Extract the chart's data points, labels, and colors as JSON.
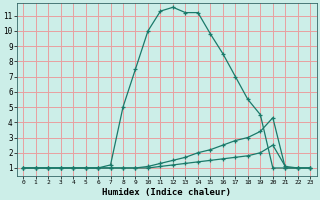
{
  "bg_color": "#cceee8",
  "grid_color": "#e8a0a0",
  "line_color": "#1a7a6a",
  "xlabel": "Humidex (Indice chaleur)",
  "xlim": [
    -0.5,
    23.5
  ],
  "ylim": [
    0.5,
    11.8
  ],
  "yticks": [
    1,
    2,
    3,
    4,
    5,
    6,
    7,
    8,
    9,
    10,
    11
  ],
  "xticks": [
    0,
    1,
    2,
    3,
    4,
    5,
    6,
    7,
    8,
    9,
    10,
    11,
    12,
    13,
    14,
    15,
    16,
    17,
    18,
    19,
    20,
    21,
    22,
    23
  ],
  "curve1_x": [
    0,
    1,
    2,
    3,
    4,
    5,
    6,
    7,
    8,
    9,
    10,
    11,
    12,
    13,
    14,
    15,
    16,
    17,
    18,
    19,
    20,
    21,
    22,
    23
  ],
  "curve1_y": [
    1,
    1,
    1,
    1,
    1,
    1,
    1,
    1.2,
    5,
    7.5,
    10.0,
    11.3,
    11.55,
    11.2,
    11.2,
    9.8,
    8.5,
    7.0,
    5.5,
    4.5,
    1,
    1,
    1,
    1
  ],
  "curve2_x": [
    0,
    1,
    2,
    3,
    4,
    5,
    6,
    7,
    8,
    9,
    10,
    11,
    12,
    13,
    14,
    15,
    16,
    17,
    18,
    19,
    20,
    21,
    22,
    23
  ],
  "curve2_y": [
    1,
    1,
    1,
    1,
    1,
    1,
    1,
    1,
    1,
    1,
    1.1,
    1.3,
    1.5,
    1.7,
    2.0,
    2.2,
    2.5,
    2.8,
    3.0,
    3.4,
    4.3,
    1,
    1,
    1
  ],
  "curve3_x": [
    0,
    1,
    2,
    3,
    4,
    5,
    6,
    7,
    8,
    9,
    10,
    11,
    12,
    13,
    14,
    15,
    16,
    17,
    18,
    19,
    20,
    21,
    22,
    23
  ],
  "curve3_y": [
    1,
    1,
    1,
    1,
    1,
    1,
    1,
    1,
    1,
    1,
    1,
    1.1,
    1.2,
    1.3,
    1.4,
    1.5,
    1.6,
    1.7,
    1.8,
    2.0,
    2.5,
    1.1,
    1,
    1
  ]
}
